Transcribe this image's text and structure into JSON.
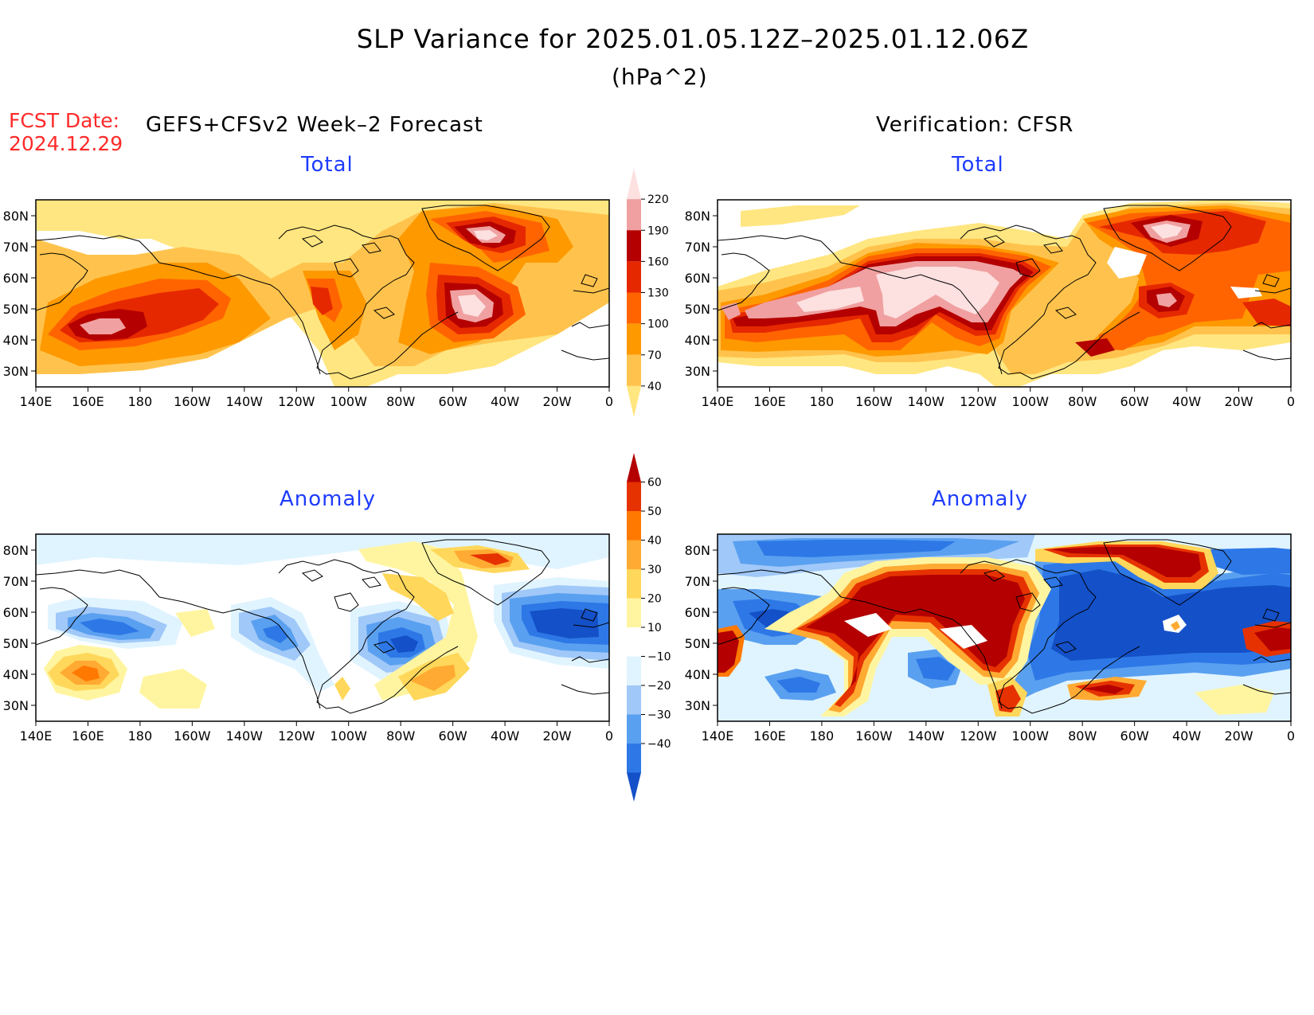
{
  "header": {
    "title": "SLP Variance for 2025.01.05.12Z–2025.01.12.06Z",
    "units": "(hPa^2)",
    "fcst_date_label": "FCST Date:",
    "fcst_date_value": "2024.12.29",
    "left_heading": "GEFS+CFSv2 Week–2 Forecast",
    "right_heading": "Verification: CFSR"
  },
  "panels": {
    "fcst_total_title": "Total",
    "verif_total_title": "Total",
    "fcst_anom_title": "Anomaly",
    "verif_anom_title": "Anomaly"
  },
  "axes": {
    "lon_ticks": [
      "140E",
      "160E",
      "180",
      "160W",
      "140W",
      "120W",
      "100W",
      "80W",
      "60W",
      "40W",
      "20W",
      "0"
    ],
    "lat_ticks": [
      "80N",
      "70N",
      "60N",
      "50N",
      "40N",
      "30N"
    ]
  },
  "colorbars": {
    "total": {
      "levels": [
        "40",
        "70",
        "100",
        "130",
        "160",
        "190",
        "220"
      ],
      "colors": [
        "#ffe680",
        "#ffc34d",
        "#ff9900",
        "#ff6400",
        "#e62800",
        "#b40000",
        "#f0a0a0",
        "#fde0e0"
      ]
    },
    "anomaly": {
      "levels": [
        "−40",
        "−30",
        "−20",
        "−10",
        "10",
        "20",
        "30",
        "40",
        "50",
        "60"
      ],
      "colors": [
        "#1450c8",
        "#2d78e6",
        "#5aa0f0",
        "#a0c8f8",
        "#e0f4ff",
        "#ffffff",
        "#fff5a0",
        "#ffd75a",
        "#ffaa32",
        "#ff7800",
        "#e63200",
        "#b40000"
      ]
    }
  },
  "colors": {
    "fcst_date_text": "#ff2a2a",
    "panel_title_text": "#1e3cff"
  }
}
